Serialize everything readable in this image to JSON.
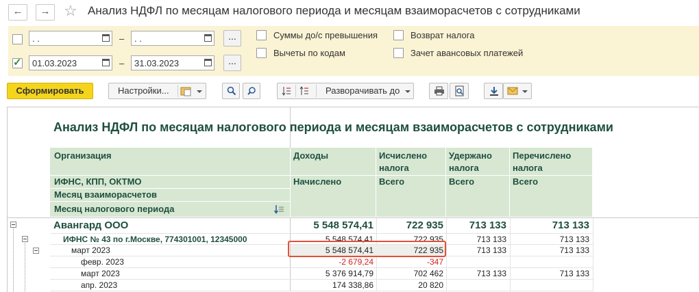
{
  "window": {
    "title": "Анализ НДФЛ по месяцам налогового периода и месяцам взаиморасчетов с сотрудниками",
    "back_icon": "←",
    "forward_icon": "→",
    "star_icon": "☆"
  },
  "filters": {
    "row1": {
      "checked": false,
      "from": "  .  .    ",
      "to": "  .  .    ",
      "dots": "..."
    },
    "row2": {
      "checked": true,
      "from": "01.03.2023",
      "to": "31.03.2023",
      "dots": "..."
    },
    "dash": "–",
    "options": [
      {
        "label": "Суммы до/с превышения",
        "checked": false
      },
      {
        "label": "Вычеты по кодам",
        "checked": false
      },
      {
        "label": "Возврат налога",
        "checked": false
      },
      {
        "label": "Зачет авансовых платежей",
        "checked": false
      }
    ]
  },
  "toolbar": {
    "generate": "Сформировать",
    "settings": "Настройки...",
    "expand": "Разворачивать до"
  },
  "report": {
    "title": "Анализ НДФЛ по месяцам налогового периода и месяцам взаиморасчетов с сотрудниками",
    "header": {
      "org": "Организация",
      "ifns": "ИФНС, КПП, ОКТМО",
      "month_settle": "Месяц взаиморасчетов",
      "month_tax": "Месяц налогового периода",
      "income": "Доходы",
      "income_sub": "Начислено",
      "calc": "Исчислено\nналога",
      "calc_sub": "Всего",
      "withheld": "Удержано\nналога",
      "withheld_sub": "Всего",
      "transferred": "Перечислено\nналога",
      "transferred_sub": "Всего"
    },
    "rows": [
      {
        "label": "Авангард ООО",
        "income": "5 548 574,41",
        "calc": "722 935",
        "withheld": "713 133",
        "transferred": "713 133"
      },
      {
        "label": "ИФНС № 43 по г.Москве, 774301001, 12345000",
        "income": "5 548 574,41",
        "calc": "722 935",
        "withheld": "713 133",
        "transferred": "713 133"
      },
      {
        "label": "март 2023",
        "income": "5 548 574,41",
        "calc": "722 935",
        "withheld": "713 133",
        "transferred": "713 133"
      },
      {
        "label": "февр. 2023",
        "income": "-2 679,24",
        "calc": "-347",
        "withheld": "",
        "transferred": ""
      },
      {
        "label": "март 2023",
        "income": "5 376 914,79",
        "calc": "702 462",
        "withheld": "713 133",
        "transferred": "713 133"
      },
      {
        "label": "апр. 2023",
        "income": "174 338,86",
        "calc": "20 820",
        "withheld": "",
        "transferred": ""
      }
    ]
  },
  "colors": {
    "accent_yellow": "#f5d51c",
    "header_green": "#d7e7d2",
    "highlight_red": "#e0503a",
    "title_green": "#1f4f3f",
    "negative": "#d42020"
  }
}
